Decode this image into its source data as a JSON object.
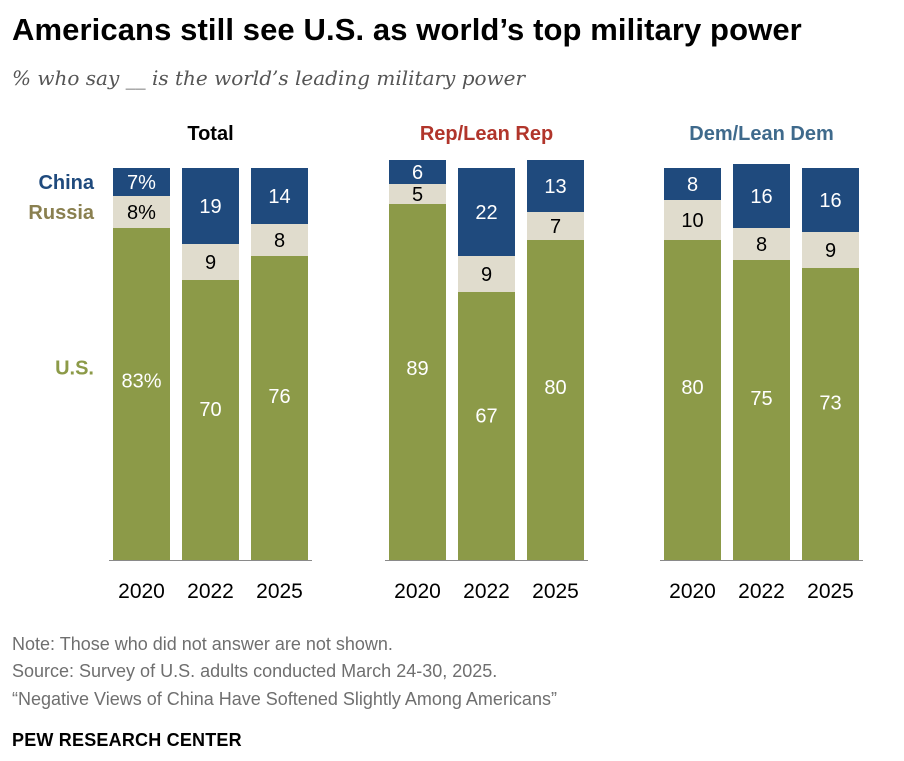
{
  "header": {
    "title": "Americans still see U.S. as world’s top military power",
    "subtitle": "% who say __ is the world’s leading military power"
  },
  "chart_data": {
    "type": "bar",
    "stacked": true,
    "stack_order": [
      "U.S.",
      "Russia",
      "China"
    ],
    "categories": [
      "2020",
      "2022",
      "2025"
    ],
    "colors": {
      "U.S.": "#8c9a48",
      "Russia": "#e0dccd",
      "China": "#1f4a7d"
    },
    "label_colors": {
      "U.S.": "#8c9a48",
      "Russia": "#8a8050",
      "China": "#1f4a7d"
    },
    "ylim": [
      0,
      100
    ],
    "groups": [
      {
        "name": "Total",
        "title_color": "#000000",
        "series": [
          {
            "name": "U.S.",
            "values": [
              83,
              70,
              76
            ],
            "labels": [
              "83%",
              "70",
              "76"
            ]
          },
          {
            "name": "Russia",
            "values": [
              8,
              9,
              8
            ],
            "labels": [
              "8%",
              "9",
              "8"
            ]
          },
          {
            "name": "China",
            "values": [
              7,
              19,
              14
            ],
            "labels": [
              "7%",
              "19",
              "14"
            ]
          }
        ]
      },
      {
        "name": "Rep/Lean Rep",
        "title_color": "#b1352b",
        "series": [
          {
            "name": "U.S.",
            "values": [
              89,
              67,
              80
            ],
            "labels": [
              "89",
              "67",
              "80"
            ]
          },
          {
            "name": "Russia",
            "values": [
              5,
              9,
              7
            ],
            "labels": [
              "5",
              "9",
              "7"
            ]
          },
          {
            "name": "China",
            "values": [
              6,
              22,
              13
            ],
            "labels": [
              "6",
              "22",
              "13"
            ]
          }
        ]
      },
      {
        "name": "Dem/Lean Dem",
        "title_color": "#3f6a8c",
        "series": [
          {
            "name": "U.S.",
            "values": [
              80,
              75,
              73
            ],
            "labels": [
              "80",
              "75",
              "73"
            ]
          },
          {
            "name": "Russia",
            "values": [
              10,
              8,
              9
            ],
            "labels": [
              "10",
              "8",
              "9"
            ]
          },
          {
            "name": "China",
            "values": [
              8,
              16,
              16
            ],
            "labels": [
              "8",
              "16",
              "16"
            ]
          }
        ]
      }
    ]
  },
  "footer": {
    "note": "Note: Those who did not answer are not shown.",
    "source": "Source: Survey of U.S. adults conducted March 24-30, 2025.",
    "report": "“Negative Views of China Have Softened Slightly Among Americans”",
    "brand": "PEW RESEARCH CENTER"
  }
}
